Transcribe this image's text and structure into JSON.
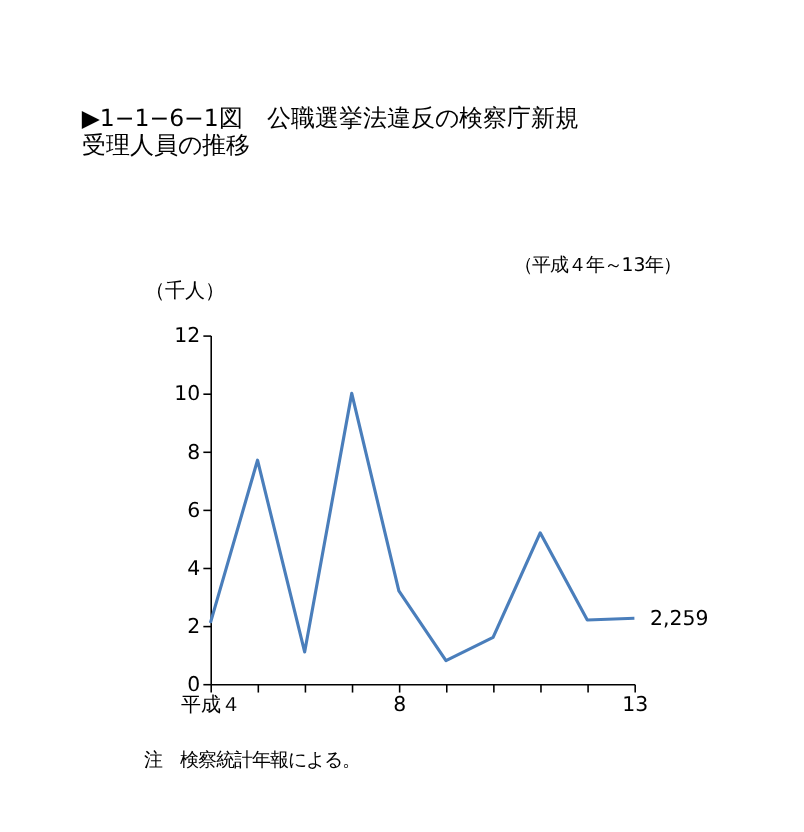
{
  "chart_data": {
    "type": "line",
    "title": [
      "▶1−1−6−1図　公職選挙法違反の検察庁新規",
      "受理人員の推移"
    ],
    "subtitle": "（平成４年～13年）",
    "ylabel": "（千人）",
    "x": [
      4,
      5,
      6,
      7,
      8,
      9,
      10,
      11,
      12,
      13
    ],
    "series": [
      {
        "color": "#4a7ebb",
        "values": [
          2.1,
          7.7,
          1.1,
          10.0,
          3.2,
          0.8,
          1.6,
          5.2,
          2.2,
          2.259
        ]
      }
    ],
    "xlim": [
      4,
      13
    ],
    "xticks": [
      {
        "value": 4,
        "label": "平成４"
      },
      {
        "value": 5,
        "label": null
      },
      {
        "value": 6,
        "label": null
      },
      {
        "value": 7,
        "label": null
      },
      8,
      {
        "value": 9,
        "label": null
      },
      {
        "value": 10,
        "label": null
      },
      {
        "value": 11,
        "label": null
      },
      {
        "value": 12,
        "label": null
      },
      13
    ],
    "ylim": [
      0,
      12
    ],
    "yticks": [
      0,
      2,
      4,
      6,
      8,
      10,
      12
    ],
    "grid": false,
    "marker": "none",
    "line_style": "solid",
    "annotations": [
      {
        "text": "2,259",
        "x": 13,
        "y": 2.259
      },
      "注　検察統計年報による。"
    ]
  }
}
